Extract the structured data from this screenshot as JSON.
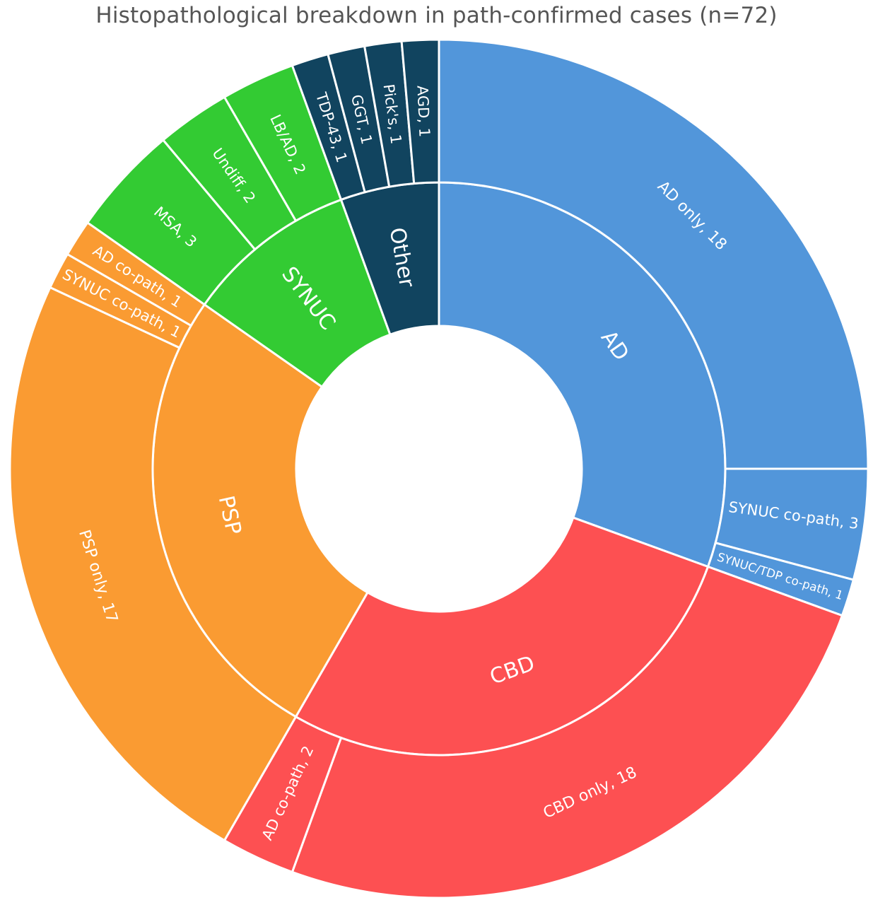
{
  "chart_data": {
    "type": "sunburst",
    "title": "Histopathological breakdown in path-confirmed cases (n=72)",
    "total": 72,
    "groups": [
      {
        "name": "AD",
        "label": "AD",
        "value": 22,
        "color": "#5296da",
        "children": [
          {
            "name": "AD only",
            "label": "AD only, 18",
            "value": 18
          },
          {
            "name": "SYNUC co-path",
            "label": "SYNUC co-path, 3",
            "value": 3
          },
          {
            "name": "SYNUC/TDP co-path",
            "label": "SYNUC/TDP co-path, 1",
            "value": 1
          }
        ]
      },
      {
        "name": "CBD",
        "label": "CBD",
        "value": 20,
        "color": "#fd5052",
        "children": [
          {
            "name": "CBD only",
            "label": "CBD only, 18",
            "value": 18
          },
          {
            "name": "AD co-path",
            "label": "AD co-path, 2",
            "value": 2
          }
        ]
      },
      {
        "name": "PSP",
        "label": "PSP",
        "value": 19,
        "color": "#fa9b32",
        "children": [
          {
            "name": "PSP only",
            "label": "PSP only, 17",
            "value": 17
          },
          {
            "name": "SYNUC co-path",
            "label": "SYNUC co-path, 1",
            "value": 1
          },
          {
            "name": "AD co-path",
            "label": "AD co-path, 1",
            "value": 1
          }
        ]
      },
      {
        "name": "SYNUC",
        "label": "SYNUC",
        "value": 7,
        "color": "#33cb33",
        "children": [
          {
            "name": "MSA",
            "label": "MSA, 3",
            "value": 3
          },
          {
            "name": "Undiff",
            "label": "Undiff, 2",
            "value": 2
          },
          {
            "name": "LB/AD",
            "label": "LB/AD, 2",
            "value": 2
          }
        ]
      },
      {
        "name": "Other",
        "label": "Other",
        "value": 4,
        "color": "#11445f",
        "children": [
          {
            "name": "TDP-43",
            "label": "TDP-43, 1",
            "value": 1
          },
          {
            "name": "GGT",
            "label": "GGT, 1",
            "value": 1
          },
          {
            "name": "Pick's",
            "label": "Pick's, 1",
            "value": 1
          },
          {
            "name": "AGD",
            "label": "AGD, 1",
            "value": 1
          }
        ]
      }
    ]
  }
}
